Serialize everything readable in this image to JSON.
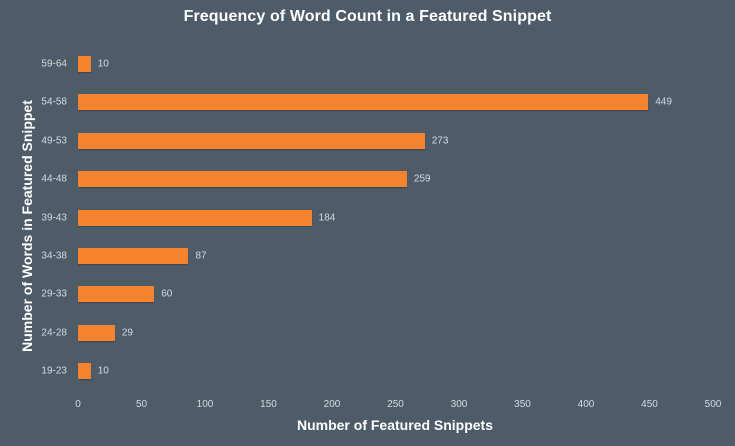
{
  "chart_data": {
    "type": "bar",
    "orientation": "horizontal",
    "title": "Frequency of Word Count in a Featured Snippet",
    "xlabel": "Number of Featured Snippets",
    "ylabel": "Number of Words in Featured Snippet",
    "categories": [
      "59-64",
      "54-58",
      "49-53",
      "44-48",
      "39-43",
      "34-38",
      "29-33",
      "24-28",
      "19-23"
    ],
    "values": [
      10,
      449,
      273,
      259,
      184,
      87,
      60,
      29,
      10
    ],
    "xlim": [
      0,
      500
    ],
    "xticks": [
      0,
      50,
      100,
      150,
      200,
      250,
      300,
      350,
      400,
      450,
      500
    ],
    "grid": false,
    "legend": null,
    "data_labels": true,
    "bar_color": "#f6842f",
    "background_color": "#4d5c68"
  },
  "labels": {
    "title": "Frequency of Word Count in a Featured Snippet",
    "xlabel": "Number of Featured Snippets",
    "ylabel": "Number of Words in Featured Snippet"
  }
}
